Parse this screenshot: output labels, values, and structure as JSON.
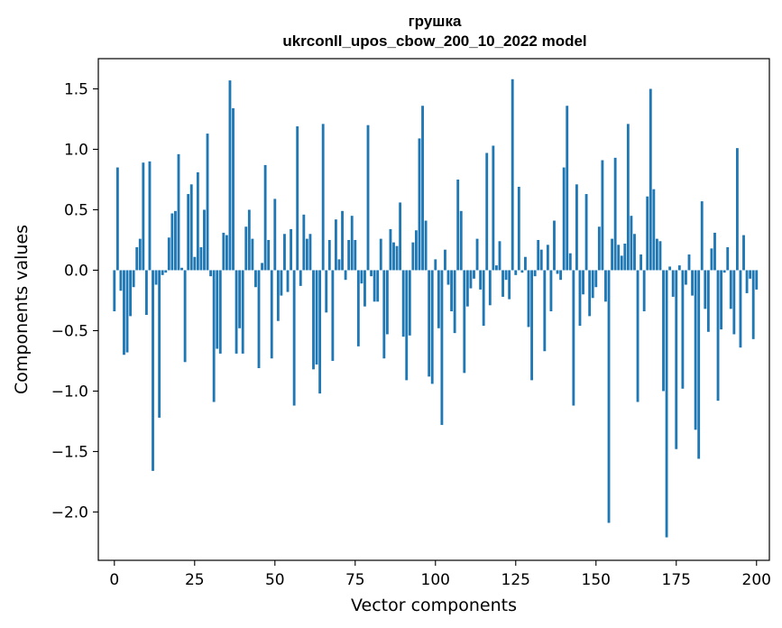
{
  "chart_data": {
    "type": "bar",
    "title_lines": [
      "грушка",
      "ukrconll_upos_cbow_200_10_2022 model"
    ],
    "xlabel": "Vector components",
    "ylabel": "Components values",
    "xlim": [
      -5,
      204
    ],
    "ylim": [
      -2.4,
      1.75
    ],
    "xticks": [
      0,
      25,
      50,
      75,
      100,
      125,
      150,
      175,
      200
    ],
    "yticks": [
      -2.0,
      -1.5,
      -1.0,
      -0.5,
      0.0,
      0.5,
      1.0,
      1.5
    ],
    "ytick_labels": [
      "−2.0",
      "−1.5",
      "−1.0",
      "−0.5",
      "0.0",
      "0.5",
      "1.0",
      "1.5"
    ],
    "grid": false,
    "bar_color": "#1f77b4",
    "values": [
      -0.34,
      0.85,
      -0.17,
      -0.7,
      -0.68,
      -0.38,
      -0.14,
      0.19,
      0.26,
      0.89,
      -0.37,
      0.9,
      -1.66,
      -0.12,
      -1.22,
      -0.04,
      -0.02,
      0.27,
      0.47,
      0.49,
      0.96,
      0.02,
      -0.76,
      0.63,
      0.71,
      0.11,
      0.81,
      0.19,
      0.5,
      1.13,
      -0.05,
      -1.09,
      -0.65,
      -0.69,
      0.31,
      0.29,
      1.57,
      1.34,
      -0.69,
      -0.48,
      -0.69,
      0.36,
      0.5,
      0.26,
      -0.14,
      -0.81,
      0.06,
      0.87,
      0.25,
      -0.73,
      0.59,
      -0.42,
      -0.21,
      0.3,
      -0.18,
      0.34,
      -1.12,
      1.19,
      -0.13,
      0.46,
      0.26,
      0.3,
      -0.82,
      -0.78,
      -1.02,
      1.21,
      -0.35,
      0.25,
      -0.75,
      0.42,
      0.09,
      0.49,
      -0.08,
      0.25,
      0.45,
      0.25,
      -0.63,
      -0.11,
      -0.3,
      1.2,
      -0.05,
      -0.26,
      -0.26,
      0.26,
      -0.73,
      -0.53,
      0.34,
      0.23,
      0.2,
      0.56,
      -0.55,
      -0.91,
      -0.54,
      0.23,
      0.33,
      1.09,
      1.36,
      0.41,
      -0.88,
      -0.94,
      0.09,
      -0.48,
      -1.28,
      0.17,
      -0.12,
      -0.34,
      -0.52,
      0.75,
      0.49,
      -0.85,
      -0.3,
      -0.15,
      -0.07,
      0.26,
      -0.16,
      -0.46,
      0.97,
      -0.29,
      1.03,
      0.04,
      0.24,
      -0.22,
      -0.08,
      -0.24,
      1.58,
      -0.04,
      0.69,
      -0.02,
      0.11,
      -0.47,
      -0.91,
      -0.05,
      0.25,
      0.17,
      -0.67,
      0.21,
      -0.34,
      0.41,
      -0.03,
      -0.08,
      0.85,
      1.36,
      0.14,
      -1.12,
      0.71,
      -0.46,
      -0.2,
      0.63,
      -0.38,
      -0.23,
      -0.14,
      0.36,
      0.91,
      -0.26,
      -2.09,
      0.26,
      0.93,
      0.21,
      0.12,
      0.22,
      1.21,
      0.45,
      0.3,
      -1.09,
      0.13,
      -0.34,
      0.61,
      1.5,
      0.67,
      0.26,
      0.24,
      -1.0,
      -2.21,
      0.03,
      -0.22,
      -1.48,
      0.04,
      -0.98,
      -0.12,
      0.13,
      -0.21,
      -1.32,
      -1.56,
      0.57,
      -0.32,
      -0.51,
      0.18,
      0.31,
      -1.08,
      -0.49,
      -0.02,
      0.19,
      -0.32,
      -0.53,
      1.01,
      -0.64,
      0.29,
      -0.19,
      -0.07,
      -0.57,
      -0.16
    ]
  }
}
